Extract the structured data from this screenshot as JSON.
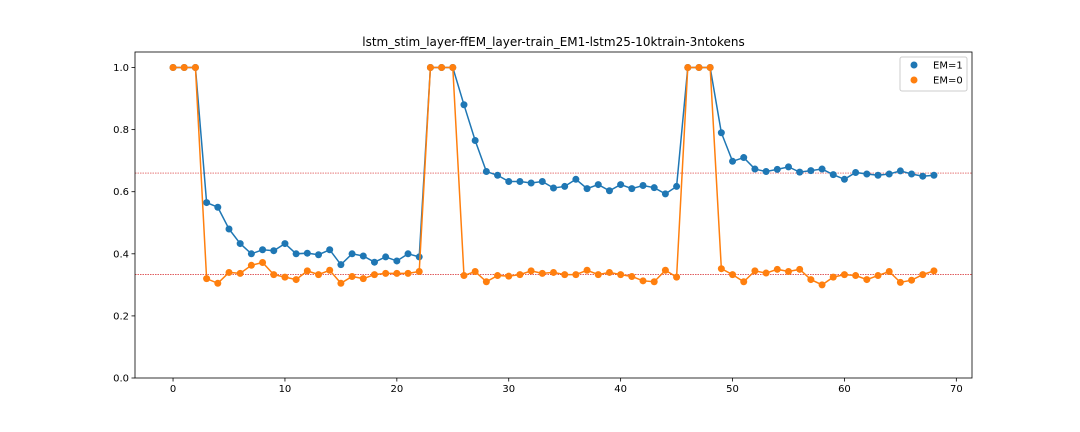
{
  "chart_data": {
    "type": "line",
    "title": "lstm_stim_layer-ffEM_layer-train_EM1-lstm25-10ktrain-3ntokens",
    "xlabel": "",
    "ylabel": "",
    "xlim": [
      -3.4,
      71.4
    ],
    "ylim": [
      0.0,
      1.05
    ],
    "xticks": [
      0,
      10,
      20,
      30,
      40,
      50,
      60,
      70
    ],
    "yticks": [
      0.0,
      0.2,
      0.4,
      0.6,
      0.8,
      1.0
    ],
    "xtick_labels": [
      "0",
      "10",
      "20",
      "30",
      "40",
      "50",
      "60",
      "70"
    ],
    "ytick_labels": [
      "0.0",
      "0.2",
      "0.4",
      "0.6",
      "0.8",
      "1.0"
    ],
    "grid": false,
    "legend_position": "top-right",
    "hlines": [
      {
        "y": 0.66,
        "color": "#d62728"
      },
      {
        "y": 0.333,
        "color": "#d62728"
      }
    ],
    "x": [
      0,
      1,
      2,
      3,
      4,
      5,
      6,
      7,
      8,
      9,
      10,
      11,
      12,
      13,
      14,
      15,
      16,
      17,
      18,
      19,
      20,
      21,
      22,
      23,
      24,
      25,
      26,
      27,
      28,
      29,
      30,
      31,
      32,
      33,
      34,
      35,
      36,
      37,
      38,
      39,
      40,
      41,
      42,
      43,
      44,
      45,
      46,
      47,
      48,
      49,
      50,
      51,
      52,
      53,
      54,
      55,
      56,
      57,
      58,
      59,
      60,
      61,
      62,
      63,
      64,
      65,
      66,
      67,
      68
    ],
    "series": [
      {
        "name": "EM=1",
        "color": "#1f77b4",
        "values": [
          1.0,
          1.0,
          1.0,
          0.565,
          0.55,
          0.48,
          0.433,
          0.4,
          0.413,
          0.41,
          0.433,
          0.4,
          0.402,
          0.397,
          0.413,
          0.365,
          0.4,
          0.393,
          0.373,
          0.39,
          0.377,
          0.4,
          0.39,
          1.0,
          1.0,
          1.0,
          0.88,
          0.765,
          0.665,
          0.653,
          0.633,
          0.633,
          0.628,
          0.633,
          0.612,
          0.617,
          0.64,
          0.61,
          0.623,
          0.603,
          0.623,
          0.61,
          0.62,
          0.613,
          0.593,
          0.617,
          1.0,
          1.0,
          1.0,
          0.79,
          0.698,
          0.71,
          0.673,
          0.665,
          0.672,
          0.68,
          0.663,
          0.668,
          0.673,
          0.655,
          0.64,
          0.662,
          0.657,
          0.653,
          0.657,
          0.667,
          0.657,
          0.65,
          0.653
        ]
      },
      {
        "name": "EM=0",
        "color": "#ff7f0e",
        "values": [
          1.0,
          1.0,
          1.0,
          0.32,
          0.305,
          0.34,
          0.337,
          0.363,
          0.372,
          0.333,
          0.325,
          0.317,
          0.345,
          0.333,
          0.347,
          0.305,
          0.327,
          0.32,
          0.333,
          0.337,
          0.337,
          0.337,
          0.343,
          1.0,
          1.0,
          1.0,
          0.33,
          0.343,
          0.31,
          0.33,
          0.328,
          0.333,
          0.345,
          0.337,
          0.34,
          0.333,
          0.333,
          0.347,
          0.333,
          0.34,
          0.333,
          0.327,
          0.313,
          0.31,
          0.347,
          0.325,
          1.0,
          1.0,
          1.0,
          0.352,
          0.333,
          0.31,
          0.345,
          0.338,
          0.35,
          0.343,
          0.35,
          0.317,
          0.3,
          0.325,
          0.333,
          0.33,
          0.317,
          0.33,
          0.343,
          0.308,
          0.315,
          0.333,
          0.345
        ]
      }
    ]
  }
}
